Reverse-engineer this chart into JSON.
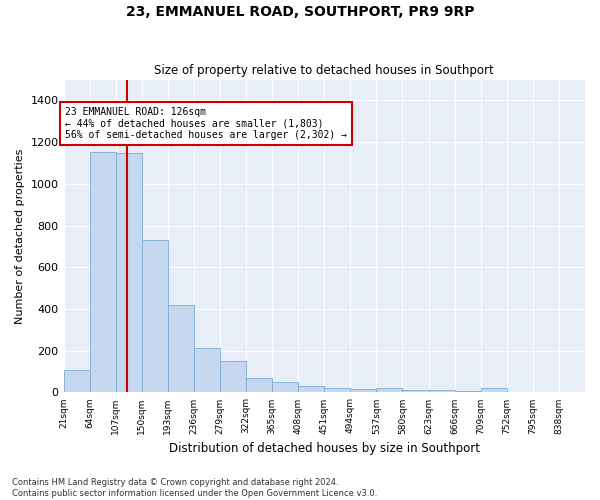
{
  "title": "23, EMMANUEL ROAD, SOUTHPORT, PR9 9RP",
  "subtitle": "Size of property relative to detached houses in Southport",
  "xlabel": "Distribution of detached houses by size in Southport",
  "ylabel": "Number of detached properties",
  "bar_color": "#c5d8f0",
  "bar_edge_color": "#7aadd4",
  "background_color": "#e8eef8",
  "grid_color": "#ffffff",
  "vline_value": 126,
  "vline_color": "#cc0000",
  "annotation_text": "23 EMMANUEL ROAD: 126sqm\n← 44% of detached houses are smaller (1,803)\n56% of semi-detached houses are larger (2,302) →",
  "annotation_box_facecolor": "#ffffff",
  "annotation_box_edge": "#cc0000",
  "bin_edges": [
    21,
    64,
    107,
    150,
    193,
    236,
    279,
    322,
    365,
    408,
    451,
    494,
    537,
    580,
    623,
    666,
    709,
    752,
    795,
    838,
    881
  ],
  "bar_heights": [
    107,
    1155,
    1148,
    730,
    420,
    215,
    150,
    70,
    48,
    32,
    20,
    15,
    20,
    10,
    10,
    5,
    20,
    0,
    0,
    0
  ],
  "ylim": [
    0,
    1500
  ],
  "yticks": [
    0,
    200,
    400,
    600,
    800,
    1000,
    1200,
    1400
  ],
  "footer_text": "Contains HM Land Registry data © Crown copyright and database right 2024.\nContains public sector information licensed under the Open Government Licence v3.0.",
  "figsize": [
    6.0,
    5.0
  ],
  "dpi": 100
}
